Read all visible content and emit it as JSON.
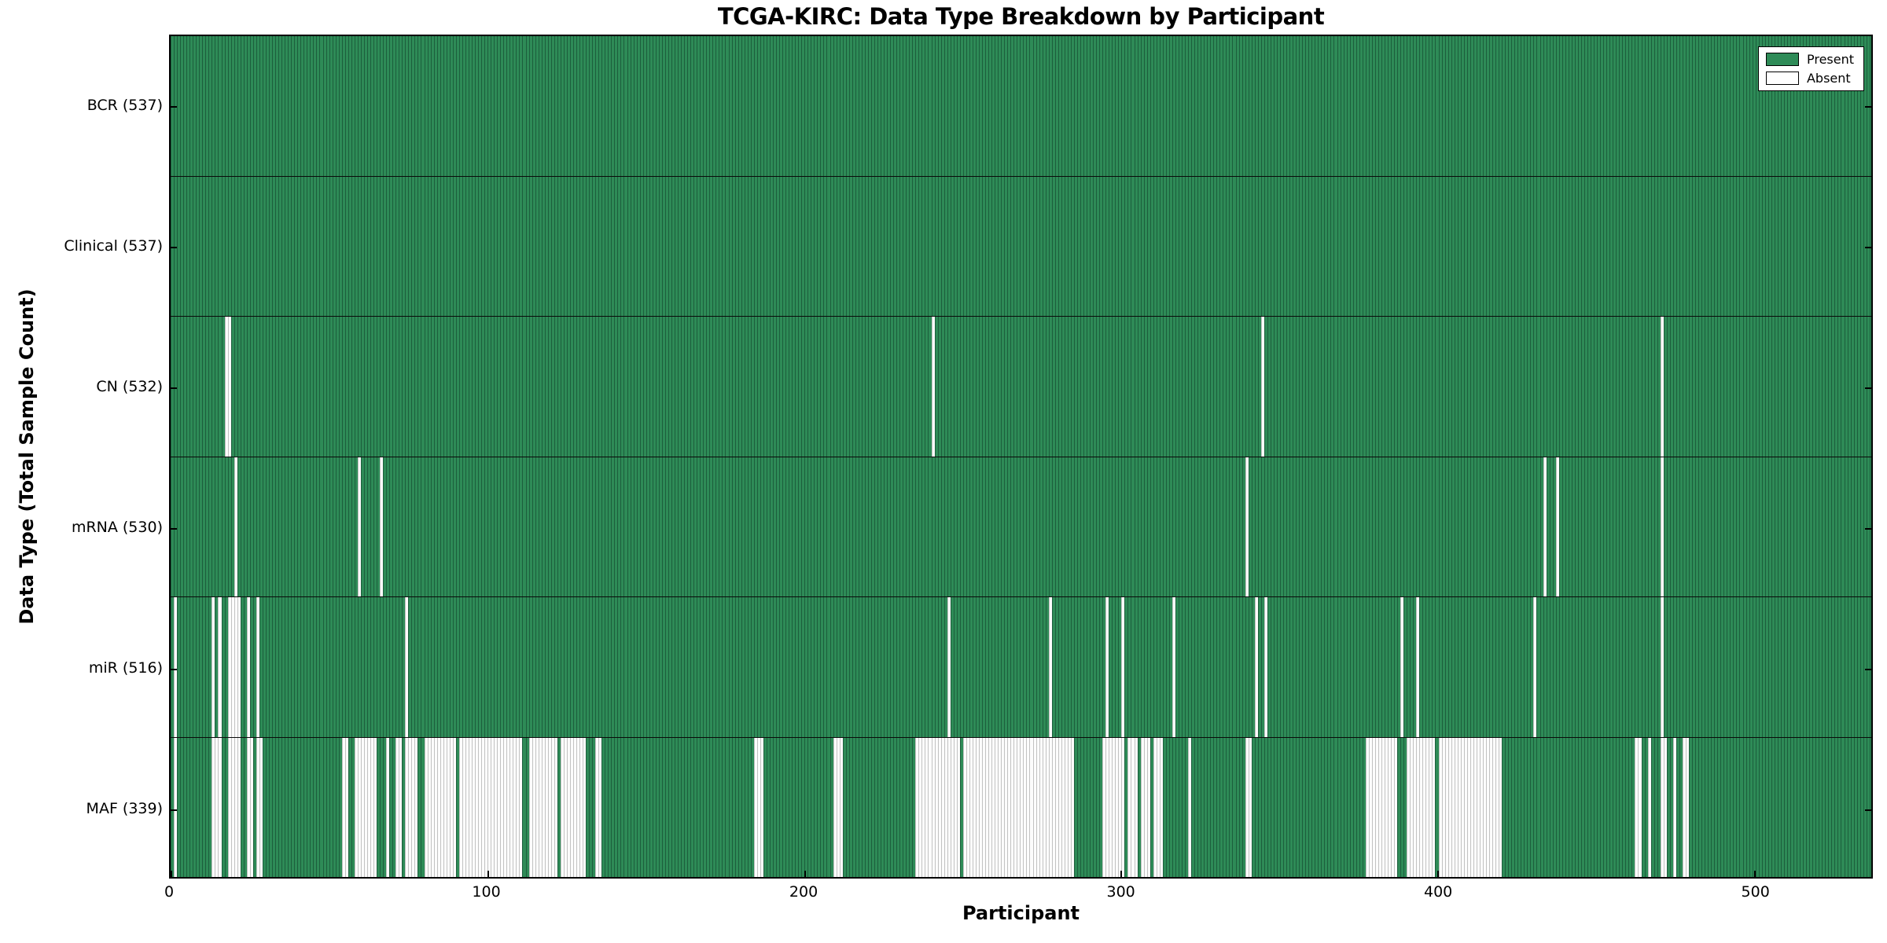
{
  "figure": {
    "title": "TCGA-KIRC: Data Type Breakdown by Participant",
    "xlabel": "Participant",
    "ylabel": "Data Type (Total Sample Count)"
  },
  "legend": {
    "items": [
      {
        "label": "Present",
        "color": "#2e8b57"
      },
      {
        "label": "Absent",
        "color": "#ffffff"
      }
    ]
  },
  "chart_data": {
    "type": "heatmap",
    "title": "TCGA-KIRC: Data Type Breakdown by Participant",
    "xlabel": "Participant",
    "ylabel": "Data Type (Total Sample Count)",
    "x_ticks": [
      0,
      100,
      200,
      300,
      400,
      500
    ],
    "xlim": [
      0,
      537
    ],
    "n_participants": 537,
    "grid": false,
    "legend_position": "upper right",
    "present_color": "#2e8b57",
    "absent_color": "#ffffff",
    "rows": [
      {
        "name": "BCR",
        "label": "BCR (537)",
        "present_count": 537,
        "absent_count": 0,
        "absent_ranges": []
      },
      {
        "name": "Clinical",
        "label": "Clinical (537)",
        "present_count": 537,
        "absent_count": 0,
        "absent_ranges": []
      },
      {
        "name": "CN",
        "label": "CN (532)",
        "present_count": 532,
        "absent_count": 5,
        "absent_ranges": [
          [
            17,
            18
          ],
          [
            240,
            240
          ],
          [
            344,
            344
          ],
          [
            470,
            470
          ]
        ]
      },
      {
        "name": "mRNA",
        "label": "mRNA (530)",
        "present_count": 530,
        "absent_count": 7,
        "absent_ranges": [
          [
            20,
            20
          ],
          [
            59,
            59
          ],
          [
            66,
            66
          ],
          [
            339,
            339
          ],
          [
            433,
            433
          ],
          [
            437,
            437
          ],
          [
            470,
            470
          ]
        ]
      },
      {
        "name": "miR",
        "label": "miR (516)",
        "present_count": 516,
        "absent_count": 21,
        "absent_ranges": [
          [
            1,
            1
          ],
          [
            13,
            13
          ],
          [
            15,
            15
          ],
          [
            18,
            21
          ],
          [
            24,
            24
          ],
          [
            27,
            27
          ],
          [
            74,
            74
          ],
          [
            245,
            245
          ],
          [
            277,
            277
          ],
          [
            295,
            295
          ],
          [
            300,
            300
          ],
          [
            316,
            316
          ],
          [
            342,
            342
          ],
          [
            345,
            345
          ],
          [
            388,
            388
          ],
          [
            393,
            393
          ],
          [
            430,
            430
          ],
          [
            470,
            470
          ]
        ]
      },
      {
        "name": "MAF",
        "label": "MAF (339)",
        "present_count": 339,
        "absent_count": 198,
        "absent_ranges": [
          [
            1,
            1
          ],
          [
            13,
            15
          ],
          [
            18,
            21
          ],
          [
            24,
            25
          ],
          [
            27,
            28
          ],
          [
            54,
            55
          ],
          [
            58,
            64
          ],
          [
            68,
            68
          ],
          [
            71,
            72
          ],
          [
            74,
            77
          ],
          [
            80,
            89
          ],
          [
            91,
            110
          ],
          [
            113,
            121
          ],
          [
            123,
            130
          ],
          [
            134,
            135
          ],
          [
            184,
            186
          ],
          [
            209,
            211
          ],
          [
            235,
            248
          ],
          [
            250,
            284
          ],
          [
            294,
            300
          ],
          [
            302,
            304
          ],
          [
            306,
            308
          ],
          [
            310,
            312
          ],
          [
            321,
            321
          ],
          [
            339,
            340
          ],
          [
            377,
            386
          ],
          [
            390,
            398
          ],
          [
            400,
            419
          ],
          [
            462,
            463
          ],
          [
            466,
            466
          ],
          [
            470,
            471
          ],
          [
            474,
            474
          ],
          [
            477,
            478
          ]
        ]
      }
    ]
  }
}
